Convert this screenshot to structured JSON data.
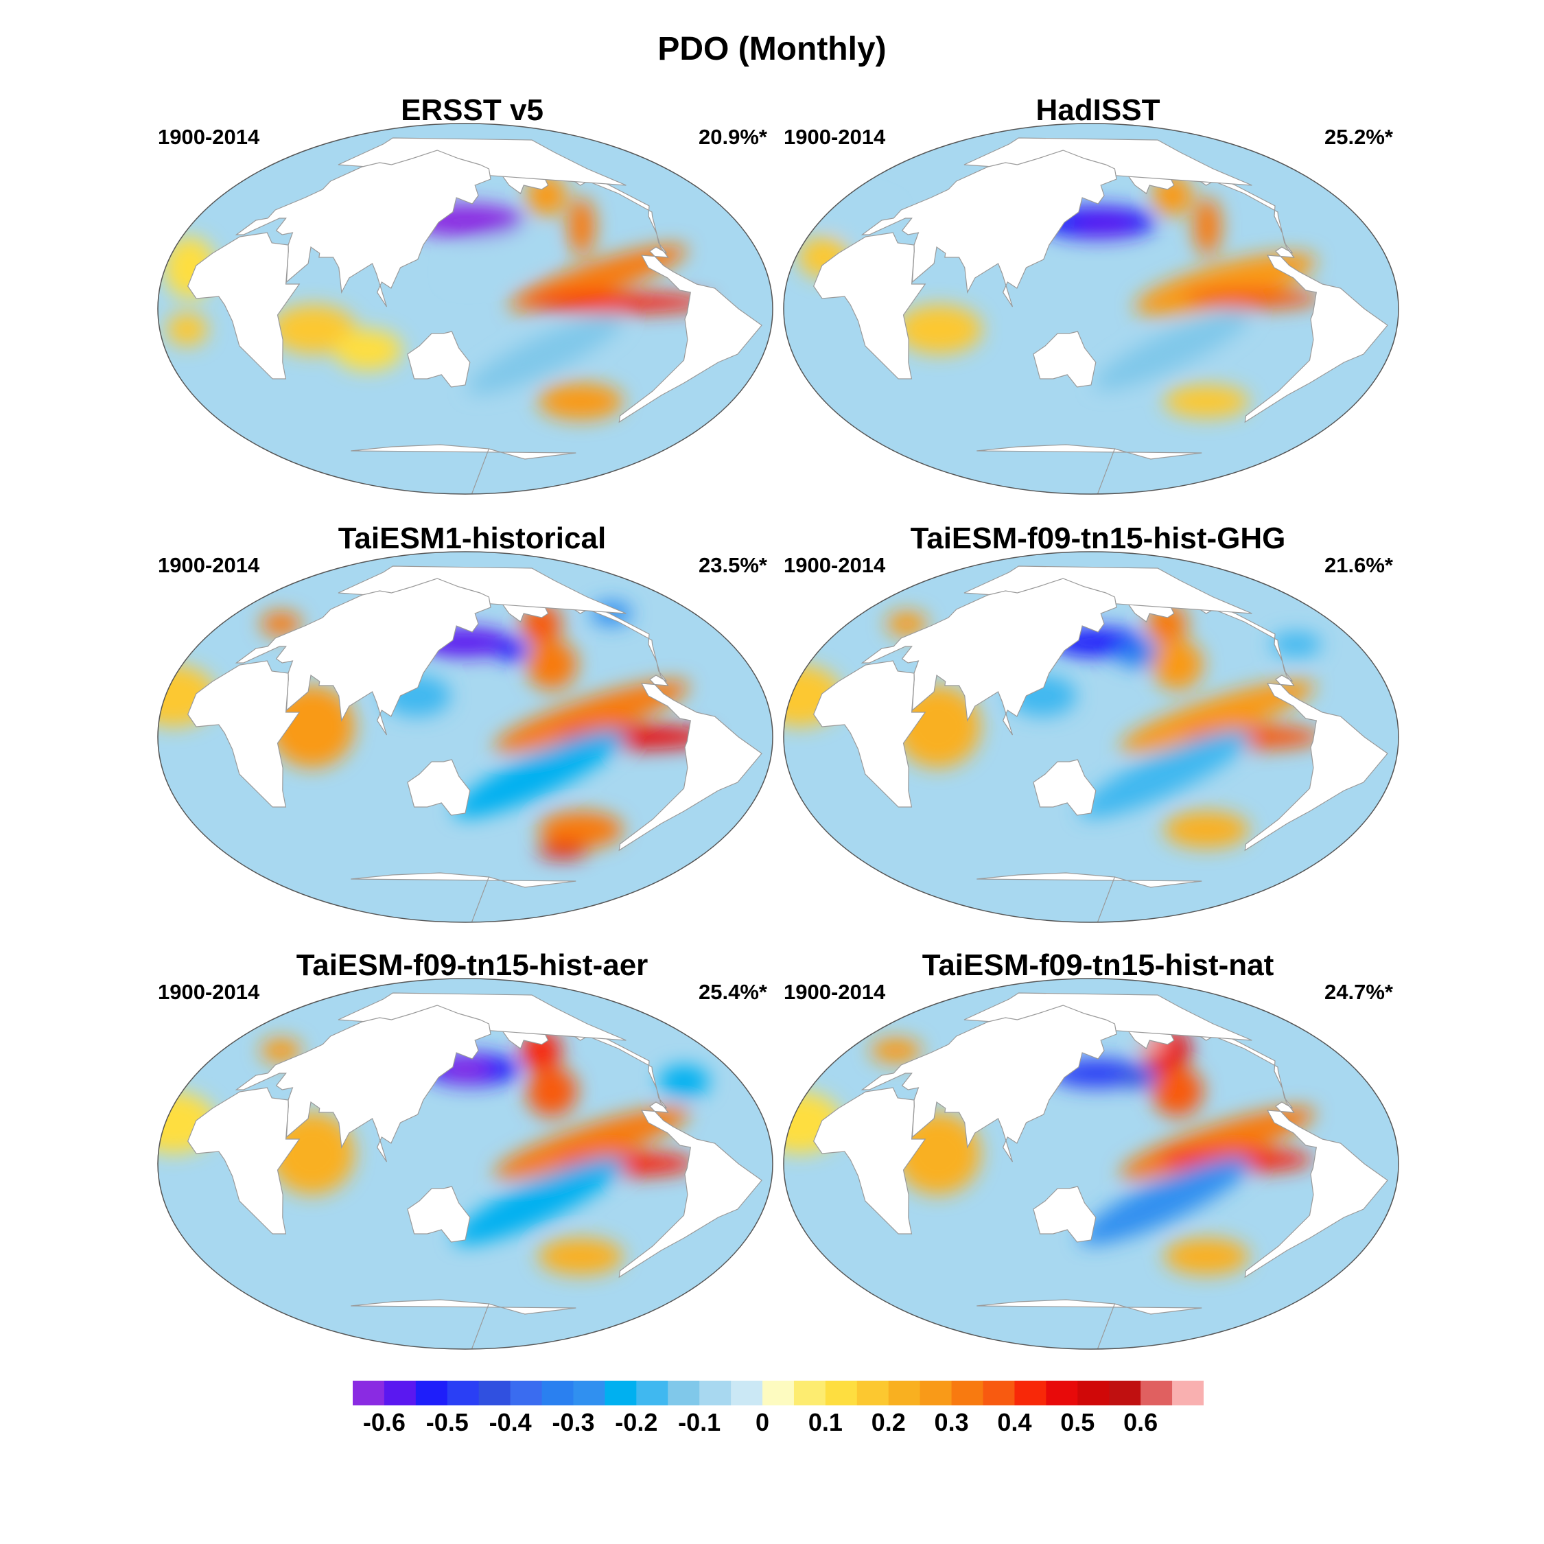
{
  "title": "PDO (Monthly)",
  "panels": [
    {
      "name": "ERSST v5",
      "period": "1900-2014",
      "variance": "20.9%*",
      "blobs": [
        {
          "lon": 150,
          "lat": 43,
          "rx": 34,
          "ry": 8,
          "v": -0.65,
          "rot": 0
        },
        {
          "lon": 152,
          "lat": 42,
          "rx": 22,
          "ry": 5,
          "v": -0.7,
          "rot": 0
        },
        {
          "lon": -135,
          "lat": 55,
          "rx": 12,
          "ry": 10,
          "v": 0.25,
          "rot": -35
        },
        {
          "lon": -125,
          "lat": 40,
          "rx": 8,
          "ry": 14,
          "v": 0.3,
          "rot": 0
        },
        {
          "lon": -130,
          "lat": 15,
          "rx": 55,
          "ry": 8,
          "v": 0.3,
          "rot": -18
        },
        {
          "lon": -120,
          "lat": 3,
          "rx": 55,
          "ry": 5,
          "v": 0.4,
          "rot": 0
        },
        {
          "lon": 170,
          "lat": 25,
          "rx": 30,
          "ry": 9,
          "v": -0.1,
          "rot": -20
        },
        {
          "lon": -160,
          "lat": -22,
          "rx": 50,
          "ry": 9,
          "v": -0.15,
          "rot": -25
        },
        {
          "lon": -120,
          "lat": -45,
          "rx": 25,
          "ry": 9,
          "v": 0.25,
          "rot": 0
        },
        {
          "lon": -20,
          "lat": 20,
          "rx": 15,
          "ry": 15,
          "v": 0.1,
          "rot": 0
        },
        {
          "lon": -15,
          "lat": -10,
          "rx": 12,
          "ry": 8,
          "v": 0.15,
          "rot": 0
        },
        {
          "lon": 60,
          "lat": -10,
          "rx": 25,
          "ry": 12,
          "v": 0.15,
          "rot": 0
        },
        {
          "lon": 90,
          "lat": -20,
          "rx": 20,
          "ry": 10,
          "v": 0.1,
          "rot": 0
        }
      ]
    },
    {
      "name": "HadISST",
      "period": "1900-2014",
      "variance": "25.2%*",
      "blobs": [
        {
          "lon": 155,
          "lat": 42,
          "rx": 34,
          "ry": 8,
          "v": -0.55,
          "rot": 0
        },
        {
          "lon": 160,
          "lat": 41,
          "rx": 18,
          "ry": 5,
          "v": -0.6,
          "rot": 0
        },
        {
          "lon": -135,
          "lat": 55,
          "rx": 12,
          "ry": 10,
          "v": 0.25,
          "rot": -35
        },
        {
          "lon": -125,
          "lat": 40,
          "rx": 8,
          "ry": 14,
          "v": 0.3,
          "rot": 0
        },
        {
          "lon": -130,
          "lat": 12,
          "rx": 55,
          "ry": 10,
          "v": 0.25,
          "rot": -15
        },
        {
          "lon": -115,
          "lat": 5,
          "rx": 40,
          "ry": 5,
          "v": 0.35,
          "rot": 0
        },
        {
          "lon": -160,
          "lat": -20,
          "rx": 50,
          "ry": 9,
          "v": -0.15,
          "rot": -25
        },
        {
          "lon": -120,
          "lat": -45,
          "rx": 25,
          "ry": 8,
          "v": 0.15,
          "rot": 0
        },
        {
          "lon": -20,
          "lat": 25,
          "rx": 15,
          "ry": 10,
          "v": 0.15,
          "rot": 0
        },
        {
          "lon": 60,
          "lat": -10,
          "rx": 25,
          "ry": 12,
          "v": 0.15,
          "rot": 0
        },
        {
          "lon": -30,
          "lat": 45,
          "rx": 20,
          "ry": 8,
          "v": -0.1,
          "rot": 0
        }
      ]
    },
    {
      "name": "TaiESM1-historical",
      "period": "1900-2014",
      "variance": "23.5%*",
      "blobs": [
        {
          "lon": 150,
          "lat": 46,
          "rx": 28,
          "ry": 7,
          "v": -0.6,
          "rot": 0
        },
        {
          "lon": -175,
          "lat": 42,
          "rx": 10,
          "ry": 5,
          "v": -0.55,
          "rot": 0
        },
        {
          "lon": -140,
          "lat": 55,
          "rx": 12,
          "ry": 10,
          "v": 0.35,
          "rot": -35
        },
        {
          "lon": -150,
          "lat": 35,
          "rx": 15,
          "ry": 12,
          "v": 0.3,
          "rot": -30
        },
        {
          "lon": -135,
          "lat": 10,
          "rx": 60,
          "ry": 9,
          "v": 0.3,
          "rot": -18
        },
        {
          "lon": -110,
          "lat": 0,
          "rx": 45,
          "ry": 6,
          "v": 0.45,
          "rot": 0
        },
        {
          "lon": -165,
          "lat": -18,
          "rx": 55,
          "ry": 10,
          "v": -0.25,
          "rot": -25
        },
        {
          "lon": -120,
          "lat": -45,
          "rx": 25,
          "ry": 9,
          "v": 0.3,
          "rot": 0
        },
        {
          "lon": -120,
          "lat": -55,
          "rx": 15,
          "ry": 4,
          "v": 0.45,
          "rot": 0
        },
        {
          "lon": 60,
          "lat": 5,
          "rx": 25,
          "ry": 20,
          "v": 0.25,
          "rot": 0
        },
        {
          "lon": -30,
          "lat": 20,
          "rx": 25,
          "ry": 15,
          "v": 0.15,
          "rot": 0
        },
        {
          "lon": 120,
          "lat": 20,
          "rx": 20,
          "ry": 10,
          "v": -0.2,
          "rot": 0
        },
        {
          "lon": -20,
          "lat": 55,
          "rx": 12,
          "ry": 6,
          "v": 0.3,
          "rot": 0
        },
        {
          "lon": -60,
          "lat": 60,
          "rx": 12,
          "ry": 6,
          "v": -0.3,
          "rot": 0
        }
      ]
    },
    {
      "name": "TaiESM-f09-tn15-hist-GHG",
      "period": "1900-2014",
      "variance": "21.6%*",
      "blobs": [
        {
          "lon": 155,
          "lat": 46,
          "rx": 28,
          "ry": 7,
          "v": -0.55,
          "rot": 0
        },
        {
          "lon": -175,
          "lat": 40,
          "rx": 15,
          "ry": 6,
          "v": -0.35,
          "rot": 0
        },
        {
          "lon": -140,
          "lat": 55,
          "rx": 12,
          "ry": 10,
          "v": 0.3,
          "rot": -35
        },
        {
          "lon": -150,
          "lat": 35,
          "rx": 15,
          "ry": 12,
          "v": 0.25,
          "rot": -30
        },
        {
          "lon": -135,
          "lat": 10,
          "rx": 60,
          "ry": 9,
          "v": 0.25,
          "rot": -18
        },
        {
          "lon": -115,
          "lat": 0,
          "rx": 40,
          "ry": 6,
          "v": 0.35,
          "rot": 0
        },
        {
          "lon": -165,
          "lat": -18,
          "rx": 55,
          "ry": 10,
          "v": -0.2,
          "rot": -25
        },
        {
          "lon": -120,
          "lat": -45,
          "rx": 25,
          "ry": 9,
          "v": 0.2,
          "rot": 0
        },
        {
          "lon": 60,
          "lat": 5,
          "rx": 25,
          "ry": 20,
          "v": 0.2,
          "rot": 0
        },
        {
          "lon": -30,
          "lat": 20,
          "rx": 25,
          "ry": 15,
          "v": 0.15,
          "rot": 0
        },
        {
          "lon": 120,
          "lat": 20,
          "rx": 20,
          "ry": 10,
          "v": -0.2,
          "rot": 0
        },
        {
          "lon": -20,
          "lat": 55,
          "rx": 12,
          "ry": 6,
          "v": 0.25,
          "rot": 0
        },
        {
          "lon": -50,
          "lat": 45,
          "rx": 15,
          "ry": 6,
          "v": -0.2,
          "rot": 0
        }
      ]
    },
    {
      "name": "TaiESM-f09-tn15-hist-aer",
      "period": "1900-2014",
      "variance": "25.4%*",
      "blobs": [
        {
          "lon": 155,
          "lat": 46,
          "rx": 28,
          "ry": 8,
          "v": -0.55,
          "rot": 0
        },
        {
          "lon": 150,
          "lat": 46,
          "rx": 15,
          "ry": 5,
          "v": -0.65,
          "rot": 0
        },
        {
          "lon": -140,
          "lat": 55,
          "rx": 12,
          "ry": 10,
          "v": 0.4,
          "rot": -35
        },
        {
          "lon": -150,
          "lat": 35,
          "rx": 15,
          "ry": 12,
          "v": 0.35,
          "rot": -30
        },
        {
          "lon": -135,
          "lat": 10,
          "rx": 60,
          "ry": 9,
          "v": 0.3,
          "rot": -18
        },
        {
          "lon": -115,
          "lat": 0,
          "rx": 40,
          "ry": 6,
          "v": 0.4,
          "rot": 0
        },
        {
          "lon": -165,
          "lat": -18,
          "rx": 55,
          "ry": 10,
          "v": -0.25,
          "rot": -25
        },
        {
          "lon": -120,
          "lat": -45,
          "rx": 25,
          "ry": 9,
          "v": 0.2,
          "rot": 0
        },
        {
          "lon": 60,
          "lat": 5,
          "rx": 25,
          "ry": 20,
          "v": 0.2,
          "rot": 0
        },
        {
          "lon": -30,
          "lat": 20,
          "rx": 25,
          "ry": 15,
          "v": 0.1,
          "rot": 0
        },
        {
          "lon": -50,
          "lat": 40,
          "rx": 15,
          "ry": 8,
          "v": -0.25,
          "rot": 0
        },
        {
          "lon": -20,
          "lat": 55,
          "rx": 12,
          "ry": 6,
          "v": 0.25,
          "rot": 0
        }
      ]
    },
    {
      "name": "TaiESM-f09-tn15-hist-nat",
      "period": "1900-2014",
      "variance": "24.7%*",
      "blobs": [
        {
          "lon": 155,
          "lat": 44,
          "rx": 28,
          "ry": 7,
          "v": -0.5,
          "rot": 0
        },
        {
          "lon": -175,
          "lat": 42,
          "rx": 12,
          "ry": 5,
          "v": -0.45,
          "rot": 0
        },
        {
          "lon": -140,
          "lat": 55,
          "rx": 14,
          "ry": 11,
          "v": 0.45,
          "rot": -35
        },
        {
          "lon": -150,
          "lat": 58,
          "rx": 8,
          "ry": 4,
          "v": 0.65,
          "rot": 0
        },
        {
          "lon": -150,
          "lat": 35,
          "rx": 15,
          "ry": 12,
          "v": 0.35,
          "rot": -30
        },
        {
          "lon": -135,
          "lat": 10,
          "rx": 60,
          "ry": 9,
          "v": 0.3,
          "rot": -18
        },
        {
          "lon": -125,
          "lat": 2,
          "rx": 45,
          "ry": 6,
          "v": 0.4,
          "rot": 0
        },
        {
          "lon": -165,
          "lat": -18,
          "rx": 55,
          "ry": 10,
          "v": -0.3,
          "rot": -25
        },
        {
          "lon": -120,
          "lat": -45,
          "rx": 25,
          "ry": 9,
          "v": 0.2,
          "rot": 0
        },
        {
          "lon": 60,
          "lat": 5,
          "rx": 25,
          "ry": 20,
          "v": 0.2,
          "rot": 0
        },
        {
          "lon": -30,
          "lat": 20,
          "rx": 25,
          "ry": 15,
          "v": 0.1,
          "rot": 0
        },
        {
          "lon": -30,
          "lat": 55,
          "rx": 15,
          "ry": 6,
          "v": 0.25,
          "rot": 0
        }
      ]
    }
  ],
  "colorbar": {
    "colors": [
      "#8a2be2",
      "#5a18f0",
      "#1e1efa",
      "#2a3ff5",
      "#3050e0",
      "#3a6cf0",
      "#2a80f0",
      "#3090f0",
      "#00b0f0",
      "#40b8f0",
      "#80c8ea",
      "#a8d8f0",
      "#cbe8f5",
      "#fdfbc0",
      "#fdec70",
      "#fede40",
      "#fcc830",
      "#f9b020",
      "#f99a18",
      "#f87a10",
      "#f85a10",
      "#f82808",
      "#e80a0a",
      "#d00808",
      "#c01010",
      "#e06060",
      "#f9b0b0"
    ],
    "levels": [
      -0.65,
      -0.6,
      -0.55,
      -0.5,
      -0.45,
      -0.4,
      -0.35,
      -0.3,
      -0.25,
      -0.2,
      -0.15,
      -0.1,
      -0.05,
      0,
      0.05,
      0.1,
      0.15,
      0.2,
      0.25,
      0.3,
      0.35,
      0.4,
      0.45,
      0.5,
      0.55,
      0.6,
      0.65
    ],
    "tick_labels": [
      "-0.6",
      "-0.5",
      "-0.4",
      "-0.3",
      "-0.2",
      "-0.1",
      "0",
      "0.1",
      "0.2",
      "0.3",
      "0.4",
      "0.5",
      "0.6"
    ]
  }
}
